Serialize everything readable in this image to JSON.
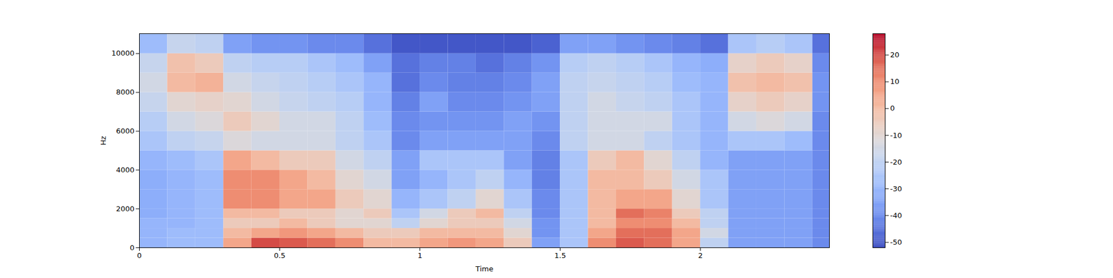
{
  "chart_data": {
    "type": "heatmap",
    "x_label": "Time",
    "y_label": "Hz",
    "xlim": [
      0,
      2.46
    ],
    "xticks": [
      0,
      0.5,
      1,
      1.5,
      2
    ],
    "ylim": [
      0,
      11025
    ],
    "yticks": [
      0,
      2000,
      4000,
      6000,
      8000,
      10000
    ],
    "x_bins": [
      0,
      0.1,
      0.2,
      0.3,
      0.4,
      0.5,
      0.6,
      0.7,
      0.8,
      0.9,
      1.0,
      1.1,
      1.2,
      1.3,
      1.4,
      1.5,
      1.6,
      1.7,
      1.8,
      1.9,
      2.0,
      2.1,
      2.2,
      2.3,
      2.4,
      2.46
    ],
    "y_bins": [
      0,
      500,
      1000,
      1500,
      2000,
      3000,
      4000,
      5000,
      6000,
      7000,
      8000,
      9000,
      10000,
      11025
    ],
    "z": [
      [
        -30,
        -28,
        -28,
        5,
        20,
        18,
        15,
        10,
        0,
        0,
        5,
        8,
        5,
        -5,
        -35,
        -25,
        10,
        18,
        15,
        5,
        -20,
        -35,
        -35,
        -35,
        -40
      ],
      [
        -30,
        -28,
        -28,
        0,
        5,
        8,
        5,
        0,
        -5,
        -5,
        0,
        0,
        0,
        -10,
        -38,
        -25,
        5,
        15,
        15,
        5,
        -15,
        -35,
        -35,
        -35,
        -40
      ],
      [
        -30,
        -30,
        -28,
        -5,
        -5,
        0,
        -5,
        -10,
        -10,
        -20,
        -10,
        -5,
        -5,
        -15,
        -38,
        -25,
        0,
        10,
        10,
        0,
        -20,
        -35,
        -35,
        -35,
        -40
      ],
      [
        -32,
        -30,
        -28,
        0,
        0,
        -5,
        -5,
        -10,
        -5,
        -25,
        -15,
        -5,
        0,
        -20,
        -40,
        -25,
        0,
        15,
        12,
        -5,
        -20,
        -35,
        -35,
        -35,
        -40
      ],
      [
        -32,
        -30,
        -28,
        10,
        10,
        5,
        5,
        -5,
        -10,
        -30,
        -25,
        -20,
        -10,
        -25,
        -40,
        -25,
        0,
        5,
        5,
        -10,
        -25,
        -35,
        -35,
        -35,
        -40
      ],
      [
        -32,
        -30,
        -28,
        10,
        10,
        5,
        0,
        -10,
        -15,
        -35,
        -30,
        -25,
        -20,
        -30,
        -42,
        -25,
        0,
        0,
        -5,
        -15,
        -25,
        -35,
        -35,
        -35,
        -40
      ],
      [
        -30,
        -28,
        -25,
        5,
        0,
        -5,
        -5,
        -15,
        -20,
        -35,
        -25,
        -25,
        -25,
        -35,
        -42,
        -25,
        -5,
        0,
        -10,
        -20,
        -30,
        -35,
        -35,
        -35,
        -40
      ],
      [
        -25,
        -20,
        -18,
        -12,
        -15,
        -15,
        -15,
        -20,
        -25,
        -40,
        -35,
        -35,
        -35,
        -35,
        -40,
        -20,
        -15,
        -15,
        -20,
        -25,
        -30,
        -25,
        -25,
        -28,
        -40
      ],
      [
        -22,
        -15,
        -12,
        -5,
        -10,
        -15,
        -15,
        -20,
        -28,
        -40,
        -38,
        -38,
        -38,
        -35,
        -38,
        -20,
        -15,
        -15,
        -15,
        -25,
        -30,
        -15,
        -12,
        -15,
        -40
      ],
      [
        -18,
        -10,
        -8,
        -10,
        -15,
        -18,
        -20,
        -22,
        -30,
        -42,
        -35,
        -40,
        -40,
        -38,
        -35,
        -20,
        -15,
        -18,
        -20,
        -25,
        -30,
        -8,
        -5,
        -8,
        -38
      ],
      [
        -15,
        0,
        2,
        -15,
        -18,
        -20,
        -22,
        -25,
        -30,
        -45,
        -40,
        -42,
        -42,
        -40,
        -35,
        -20,
        -18,
        -20,
        -22,
        -28,
        -30,
        -2,
        0,
        -2,
        -38
      ],
      [
        -18,
        -2,
        -5,
        -20,
        -22,
        -22,
        -25,
        -28,
        -35,
        -45,
        -42,
        -42,
        -45,
        -42,
        -38,
        -22,
        -20,
        -22,
        -25,
        -30,
        -32,
        -8,
        -5,
        -8,
        -40
      ],
      [
        -28,
        -18,
        -20,
        -35,
        -38,
        -38,
        -40,
        -40,
        -45,
        -50,
        -50,
        -50,
        -50,
        -50,
        -48,
        -35,
        -35,
        -38,
        -40,
        -42,
        -45,
        -25,
        -22,
        -25,
        -45
      ]
    ],
    "zlim": [
      -52,
      28
    ],
    "zticks": [
      -50,
      -40,
      -30,
      -20,
      -10,
      0,
      10,
      20
    ]
  }
}
